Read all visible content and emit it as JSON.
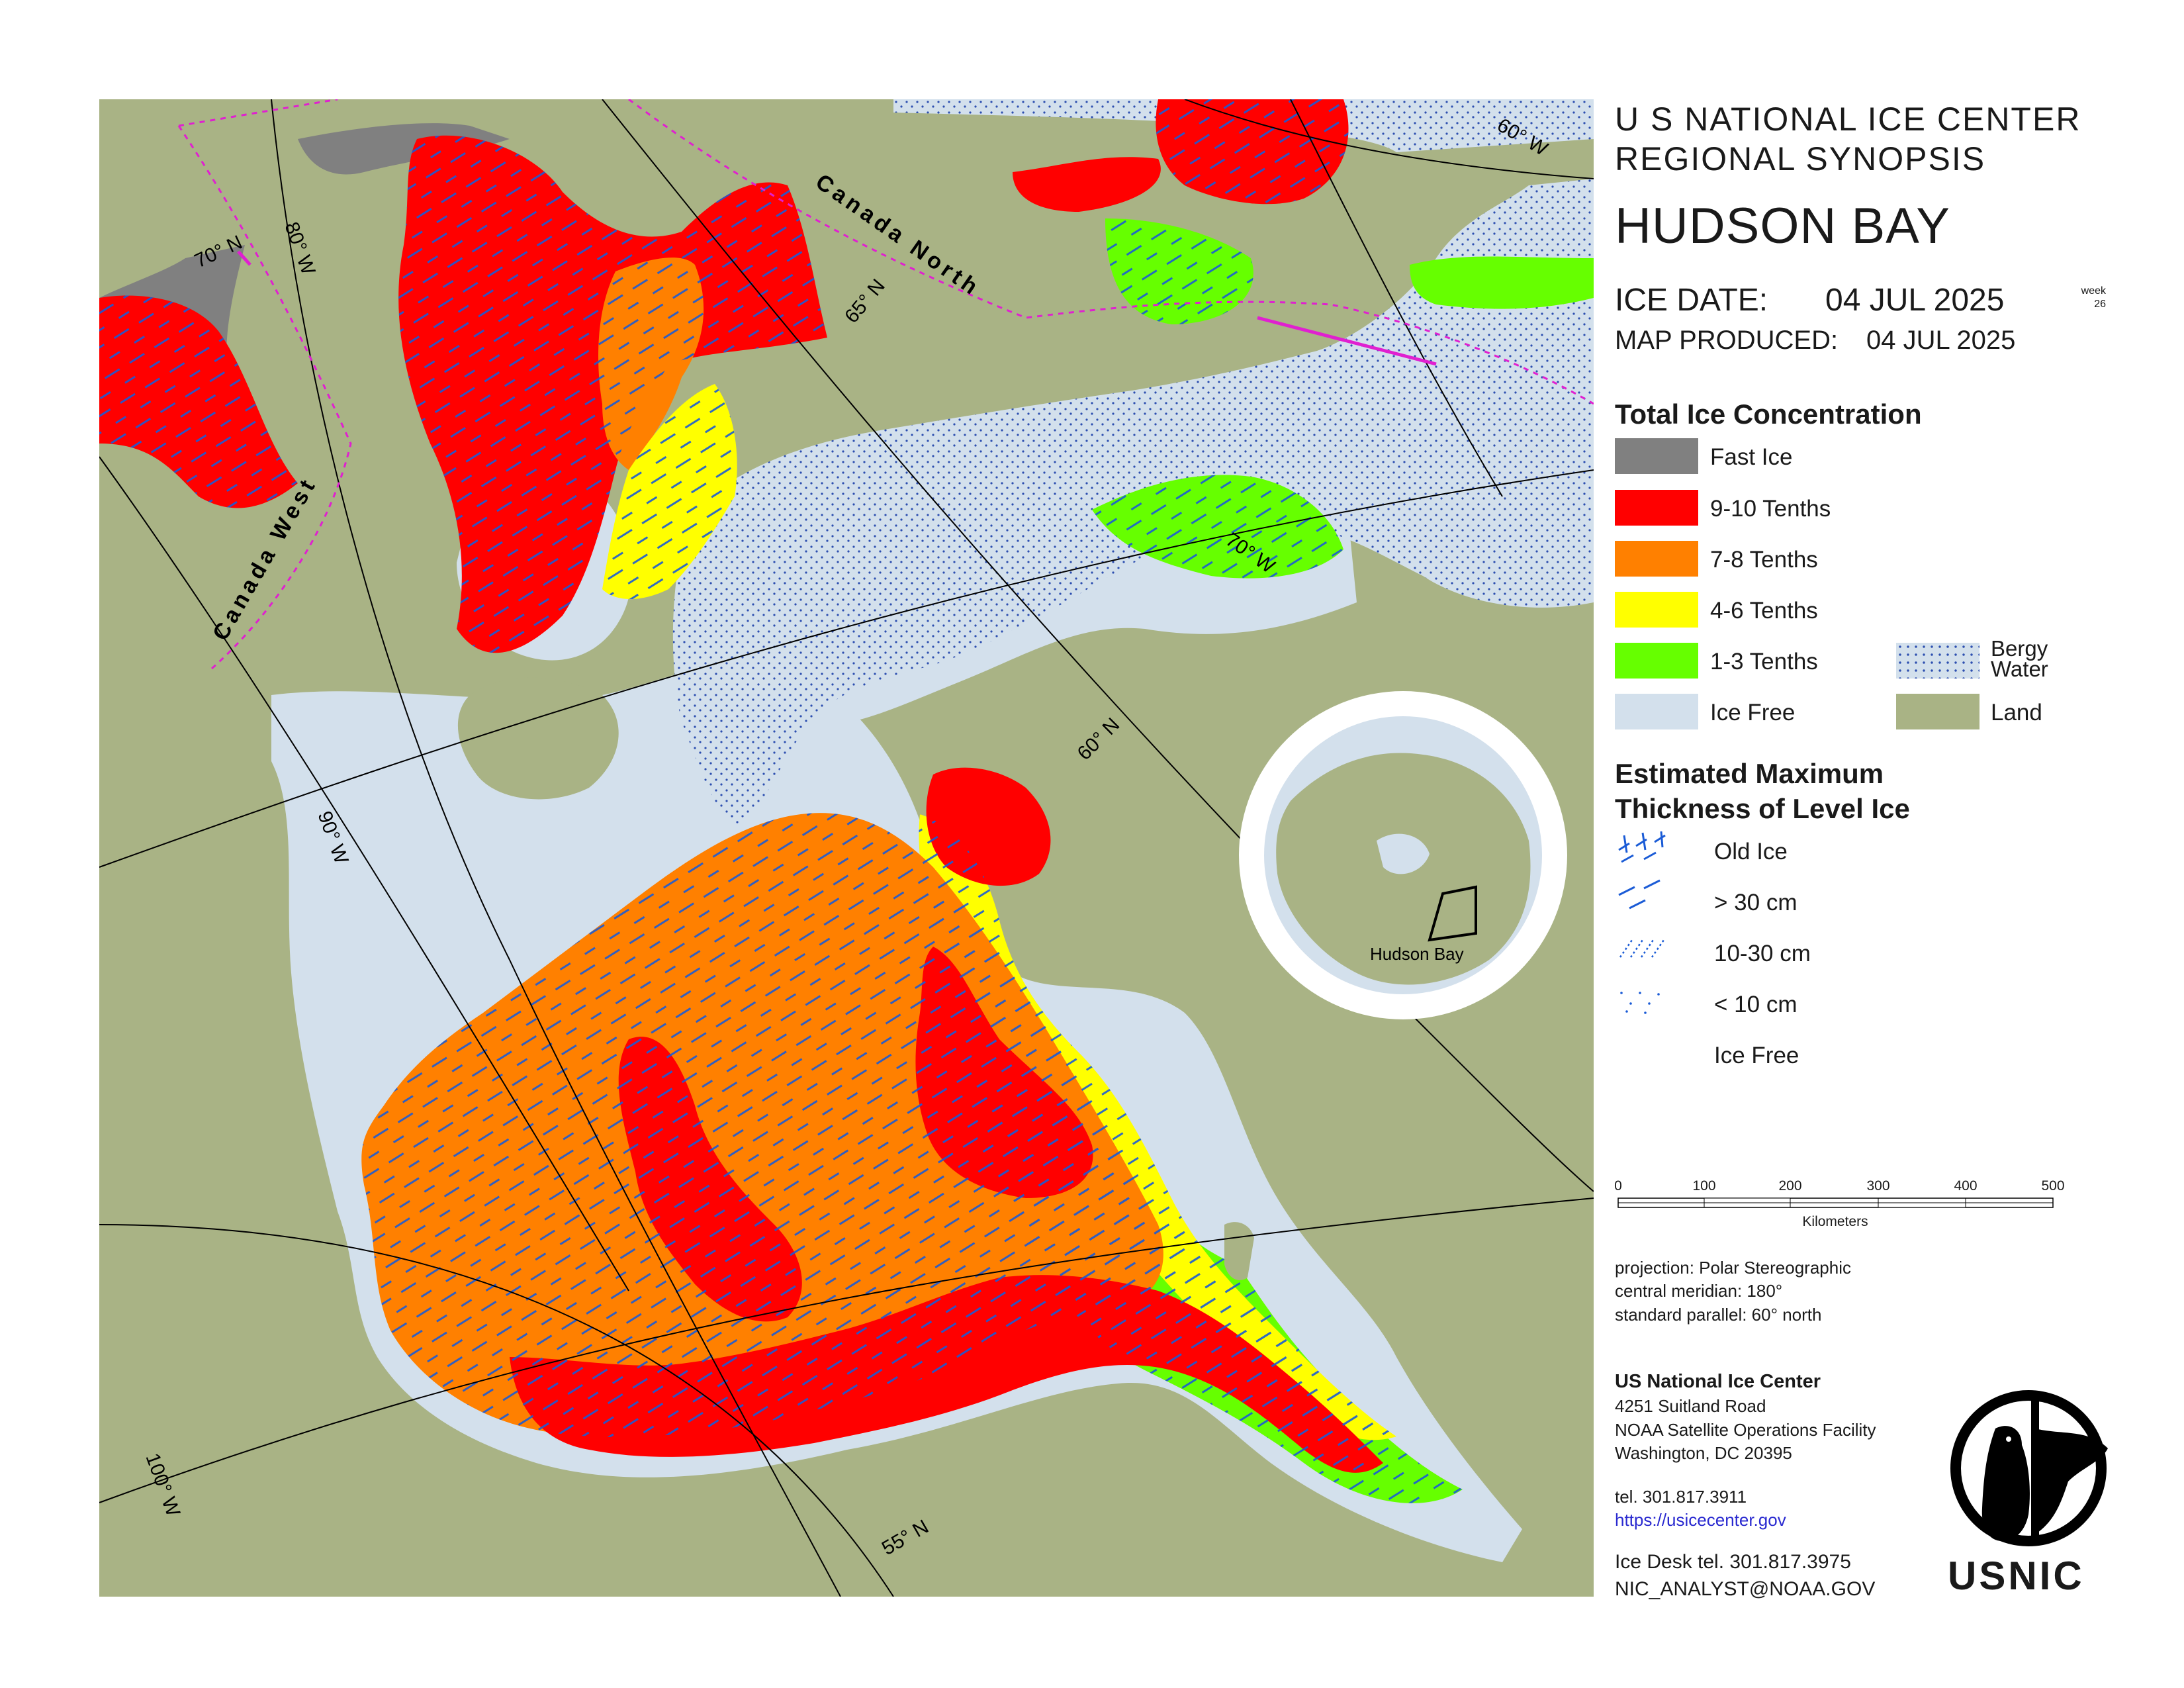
{
  "header": {
    "agency_line": "U S NATIONAL ICE CENTER",
    "synopsis_line": "REGIONAL SYNOPSIS",
    "region_title": "HUDSON BAY",
    "ice_date_label": "ICE DATE:",
    "ice_date_value": "04 JUL 2025",
    "week_label": "week",
    "week_number": "26",
    "map_produced_label": "MAP PRODUCED:",
    "map_produced_value": "04 JUL 2025"
  },
  "legend_concentration": {
    "title": "Total Ice Concentration",
    "items": [
      {
        "label": "Fast Ice",
        "color": "#808080",
        "pattern": "solid"
      },
      {
        "label": "9-10 Tenths",
        "color": "#ff0000",
        "pattern": "solid"
      },
      {
        "label": "7-8 Tenths",
        "color": "#ff8000",
        "pattern": "solid"
      },
      {
        "label": "4-6 Tenths",
        "color": "#ffff00",
        "pattern": "solid"
      },
      {
        "label": "1-3 Tenths",
        "color": "#66ff00",
        "pattern": "solid"
      },
      {
        "label": "Ice Free",
        "color": "#d3e0ec",
        "pattern": "solid"
      }
    ],
    "extra_items": [
      {
        "label_line1": "Bergy",
        "label_line2": "Water",
        "color": "#d3e0ec",
        "pattern": "dots"
      },
      {
        "label": "Land",
        "color": "#a9b385",
        "pattern": "solid"
      }
    ]
  },
  "legend_thickness": {
    "title_line1": "Estimated Maximum",
    "title_line2": "Thickness of Level Ice",
    "items": [
      {
        "label": "Old Ice",
        "pattern": "crosshatch-dash"
      },
      {
        "label": "> 30 cm",
        "pattern": "long-dash"
      },
      {
        "label": "10-30 cm",
        "pattern": "short-dash"
      },
      {
        "label": "< 10 cm",
        "pattern": "dots"
      },
      {
        "label": "Ice Free",
        "pattern": "none"
      }
    ]
  },
  "scale_bar": {
    "ticks": [
      "0",
      "100",
      "200",
      "300",
      "400",
      "500"
    ],
    "unit_label": "Kilometers"
  },
  "projection": {
    "line1": "projection: Polar Stereographic",
    "line2": "central meridian: 180°",
    "line3": "standard parallel:  60° north"
  },
  "contact": {
    "org": "US National Ice Center",
    "address1": "4251 Suitland Road",
    "address2": "NOAA Satellite Operations Facility",
    "address3": "Washington, DC  20395",
    "tel": "tel. 301.817.3911",
    "url": "https://usicecenter.gov",
    "ice_desk": "Ice Desk tel. 301.817.3975",
    "email": "NIC_ANALYST@NOAA.GOV"
  },
  "logo": {
    "text": "USNIC"
  },
  "inset": {
    "label": "Hudson Bay"
  },
  "map_labels": {
    "region_canada_north": "Canada North",
    "region_canada_west": "Canada West",
    "lat_70": "70° N",
    "lat_65": "65° N",
    "lat_60": "60° N",
    "lat_55": "55° N",
    "lon_80": "80° W",
    "lon_90": "90° W",
    "lon_100": "100° W",
    "lon_70": "70° W",
    "lon_60": "60° W"
  },
  "colors": {
    "land": "#a9b385",
    "water": "#d3e0ec",
    "fast_ice": "#808080",
    "conc_9_10": "#ff0000",
    "conc_7_8": "#ff8000",
    "conc_4_6": "#ffff00",
    "conc_1_3": "#66ff00",
    "thickness_dash": "#1a5bd6",
    "region_boundary": "#e020d0"
  }
}
